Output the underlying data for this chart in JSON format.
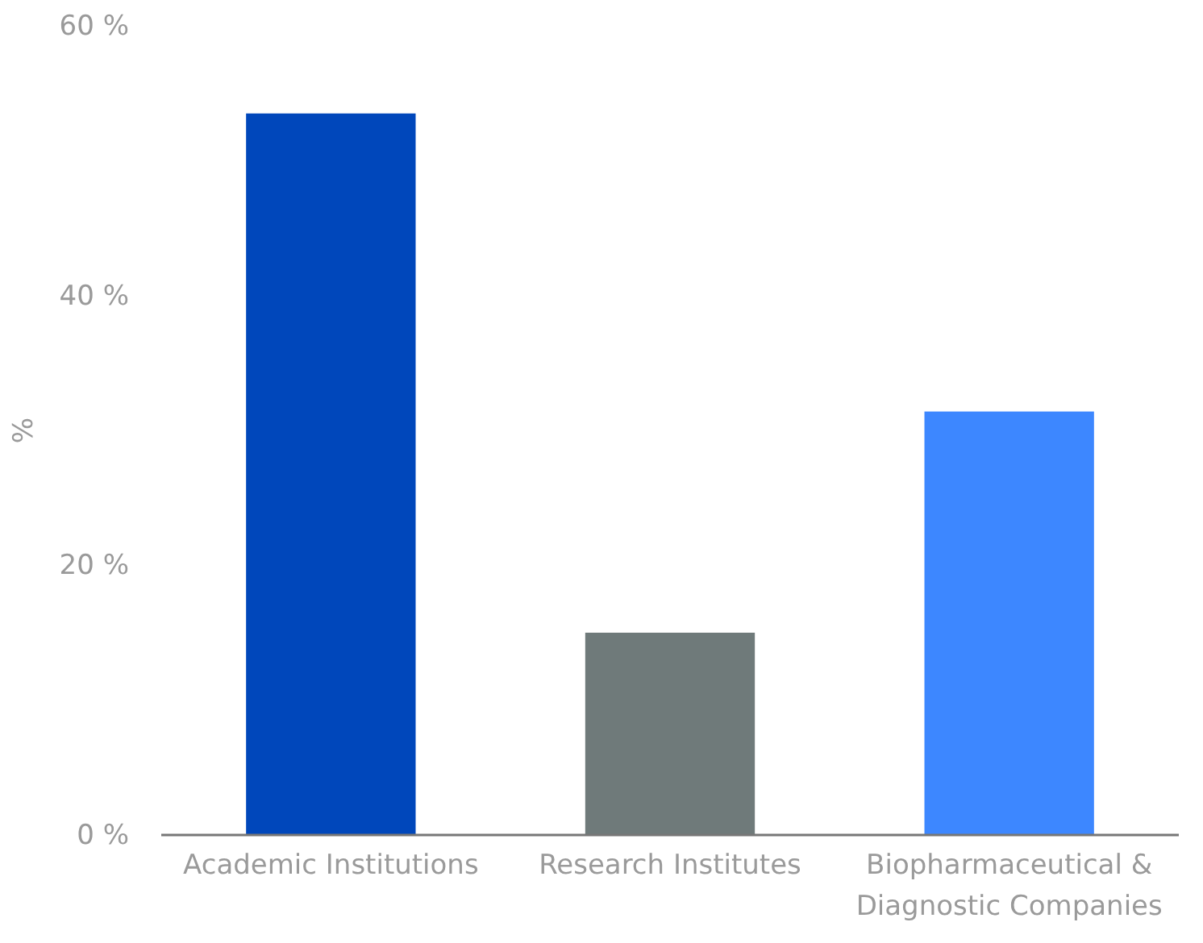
{
  "chart_data": {
    "type": "bar",
    "ylabel": "%",
    "categories": [
      "Academic Institutions",
      "Research Institutes",
      "Biopharmaceutical & Diagnostic Companies"
    ],
    "values": [
      53.5,
      15,
      31.4
    ],
    "colors": [
      "#0047bb",
      "#6f7a7a",
      "#3d87ff"
    ],
    "ylim": [
      0,
      60
    ],
    "yticks": [
      {
        "value": 0,
        "label": "0 %"
      },
      {
        "value": 20,
        "label": "20 %"
      },
      {
        "value": 40,
        "label": "40 %"
      },
      {
        "value": 60,
        "label": "60 %"
      }
    ],
    "grid": false
  }
}
